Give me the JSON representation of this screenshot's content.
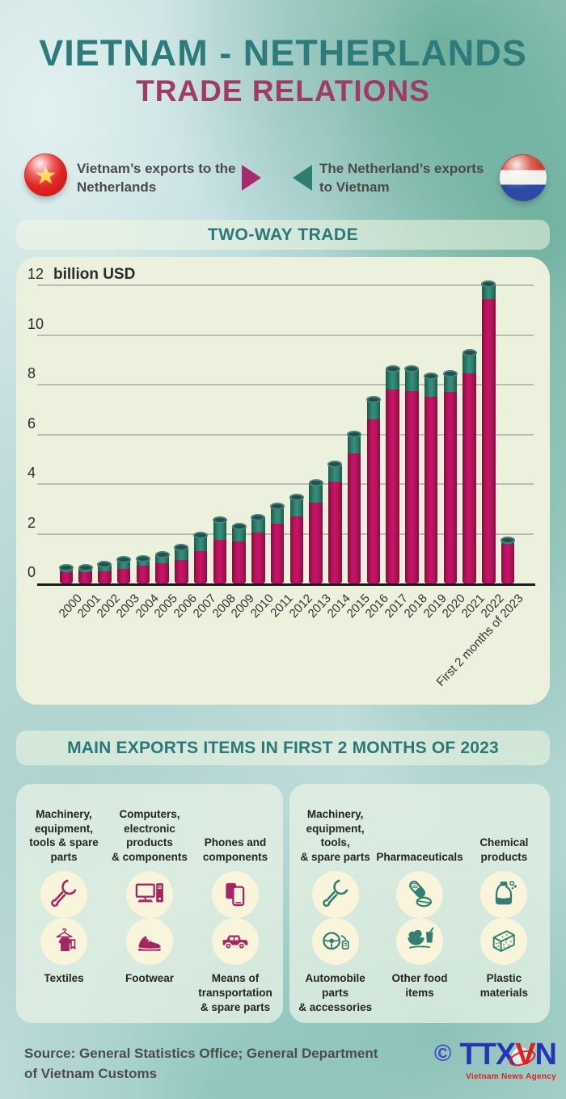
{
  "title": {
    "line1": "VIETNAM - NETHERLANDS",
    "line2": "TRADE RELATIONS"
  },
  "legend": {
    "left": {
      "flag": "vietnam-flag",
      "label": "Vietnam’s exports to the Netherlands"
    },
    "right": {
      "flag": "netherlands-flag",
      "label": "The Netherland’s exports to Vietnam"
    }
  },
  "sections": {
    "two_way_trade": "TWO-WAY TRADE",
    "main_exports": "MAIN EXPORTS ITEMS IN FIRST 2 MONTHS OF 2023"
  },
  "chart_data": {
    "type": "bar",
    "stacked": true,
    "title": "TWO-WAY TRADE",
    "unit_label": "billion USD",
    "xlabel": "",
    "ylabel": "billion USD",
    "ylim": [
      0,
      12
    ],
    "yticks": [
      0,
      2,
      4,
      6,
      8,
      10,
      12
    ],
    "grid": true,
    "legend_position": "above-chart",
    "categories": [
      "2000",
      "2001",
      "2002",
      "2003",
      "2004",
      "2005",
      "2006",
      "2007",
      "2008",
      "2009",
      "2010",
      "2011",
      "2012",
      "2013",
      "2014",
      "2015",
      "2016",
      "2017",
      "2018",
      "2019",
      "2020",
      "2021",
      "2022",
      "First 2 months of 2023"
    ],
    "series": [
      {
        "name": "Vietnam’s exports to the Netherlands",
        "color": "#b41257",
        "values": [
          0.45,
          0.45,
          0.5,
          0.6,
          0.7,
          0.8,
          0.95,
          1.3,
          1.75,
          1.7,
          2.05,
          2.4,
          2.7,
          3.25,
          4.1,
          5.25,
          6.6,
          7.8,
          7.75,
          7.5,
          7.7,
          8.45,
          11.45,
          1.6
        ]
      },
      {
        "name": "The Netherland’s exports to Vietnam",
        "color": "#2d7f6b",
        "values": [
          0.2,
          0.2,
          0.25,
          0.35,
          0.3,
          0.35,
          0.5,
          0.65,
          0.8,
          0.6,
          0.6,
          0.7,
          0.75,
          0.8,
          0.7,
          0.75,
          0.8,
          0.85,
          0.9,
          0.85,
          0.75,
          0.85,
          0.6,
          0.15
        ]
      }
    ]
  },
  "export_items": {
    "vietnam": {
      "accent": "#a32561",
      "items": [
        {
          "label": "Machinery,\nequipment,\ntools & spare parts",
          "icon": "wrench-icon"
        },
        {
          "label": "Computers,\nelectronic products\n& components",
          "icon": "desktop-computer-icon"
        },
        {
          "label": "Phones and\ncomponents",
          "icon": "mobile-phones-icon"
        },
        {
          "label": "Textiles",
          "icon": "tshirt-hanger-icon"
        },
        {
          "label": "Footwear",
          "icon": "sneaker-icon"
        },
        {
          "label": "Means of\ntransportation\n& spare parts",
          "icon": "jeep-icon"
        }
      ]
    },
    "netherlands": {
      "accent": "#327f71",
      "items": [
        {
          "label": "Machinery,\nequipment, tools,\n& spare parts",
          "icon": "wrench-icon"
        },
        {
          "label": "Pharmaceuticals",
          "icon": "pills-capsule-icon"
        },
        {
          "label": "Chemical\nproducts",
          "icon": "detergent-bottle-icon"
        },
        {
          "label": "Automobile parts\n& accessories",
          "icon": "steering-wheel-icon"
        },
        {
          "label": "Other food\nitems",
          "icon": "food-bowls-icon"
        },
        {
          "label": "Plastic materials",
          "icon": "foam-block-icon"
        }
      ]
    }
  },
  "footer": {
    "source": "Source: General Statistics Office; General Department of Vietnam Customs",
    "logo": {
      "copyright": "©",
      "ttx": "TTX",
      "v": "V",
      "n": "N",
      "subtext": "Vietnam News Agency"
    }
  },
  "colors": {
    "heading_teal": "#2e7b7c",
    "heading_magenta": "#a23a68",
    "bar_magenta": "#b41257",
    "bar_teal": "#2d7f6b",
    "arrow_magenta": "#a7296e",
    "arrow_teal": "#2f7d71",
    "icon_magenta": "#a32561",
    "icon_teal": "#327f71",
    "logo_blue": "#2634b4",
    "logo_red": "#e11f1f",
    "text_dark": "#4a4a4a"
  }
}
